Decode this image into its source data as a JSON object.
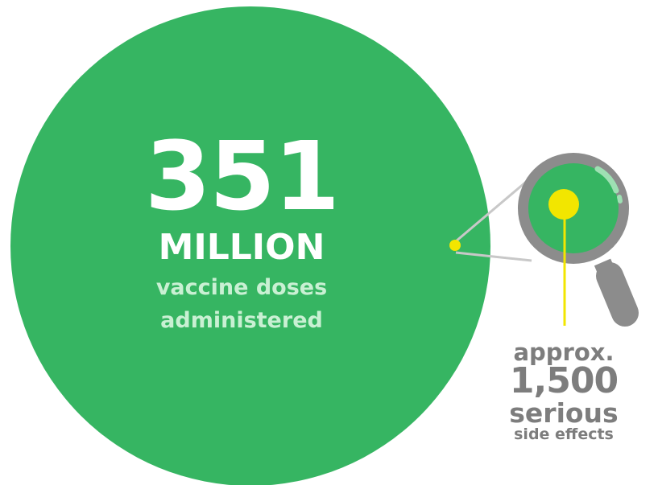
{
  "main": {
    "number": "351",
    "unit": "MILLION",
    "line1": "vaccine doses",
    "line2": "administered"
  },
  "detail": {
    "approx": "approx.",
    "number": "1,500",
    "line1": "serious",
    "line2": "side effects"
  },
  "colors": {
    "circle_green": "#36b562",
    "text_light_green": "#c9f0d3",
    "dot_yellow": "#f2e600",
    "magnifier_gray": "#8c8c8c",
    "text_gray": "#7d7d7d"
  },
  "icons": {
    "magnifier": "magnifying-glass-icon"
  }
}
